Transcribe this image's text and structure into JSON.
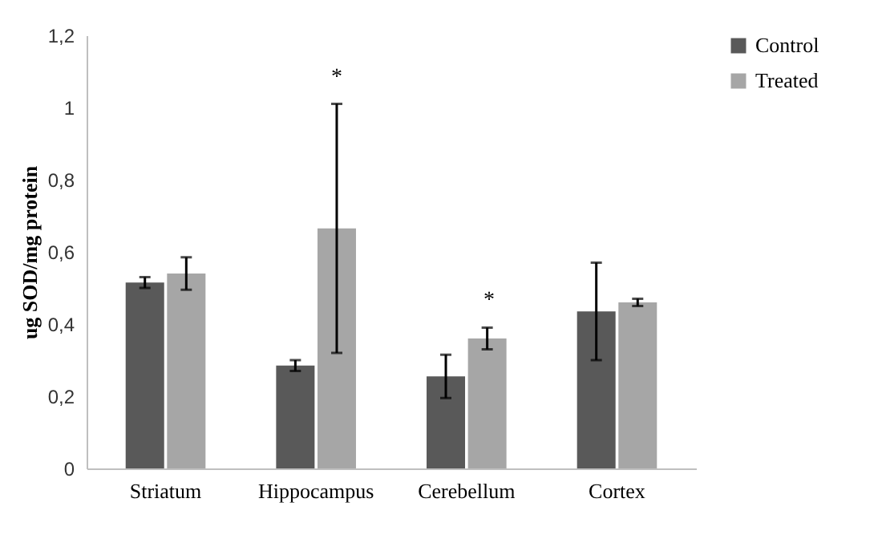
{
  "chart_data": {
    "type": "bar",
    "ylabel": "ug SOD/mg protein",
    "categories": [
      "Striatum",
      "Hippocampus",
      "Cerebellum",
      "Cortex"
    ],
    "series": [
      {
        "name": "Control",
        "color": "#595959",
        "values": [
          0.515,
          0.285,
          0.255,
          0.435
        ],
        "errors": [
          0.015,
          0.015,
          0.06,
          0.135
        ]
      },
      {
        "name": "Treated",
        "color": "#a6a6a6",
        "values": [
          0.54,
          0.665,
          0.36,
          0.46
        ],
        "errors": [
          0.045,
          0.345,
          0.03,
          0.01
        ]
      }
    ],
    "ylim": [
      0,
      1.2
    ],
    "yticks": [
      0,
      {
        "value": 0.2,
        "label": "0,2"
      },
      {
        "value": 0.4,
        "label": "0,4"
      },
      {
        "value": 0.6,
        "label": "0,6"
      },
      {
        "value": 0.8,
        "label": "0,8"
      },
      1,
      {
        "value": 1.2,
        "label": "1,2"
      }
    ],
    "annotations": [
      "*",
      "*"
    ],
    "legend": "right",
    "grid": false
  }
}
